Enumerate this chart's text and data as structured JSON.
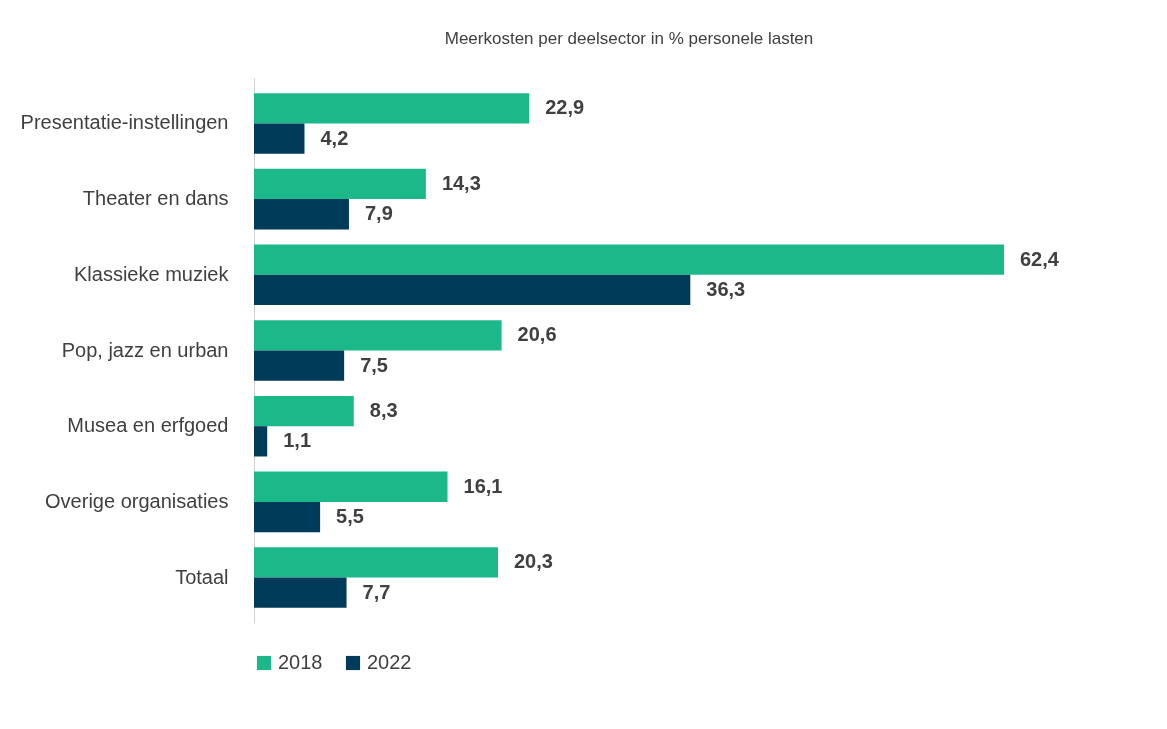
{
  "chart_data": {
    "type": "bar",
    "orientation": "horizontal",
    "title": "Meerkosten per deelsector in % personele lasten",
    "categories": [
      "Presentatie-instellingen",
      "Theater en dans",
      "Klassieke muziek",
      "Pop, jazz en urban",
      "Musea en erfgoed",
      "Overige organisaties",
      "Totaal"
    ],
    "series": [
      {
        "name": "2018",
        "color": "#1cb88a",
        "values": [
          22.9,
          14.3,
          62.4,
          20.6,
          8.3,
          16.1,
          20.3
        ],
        "value_labels": [
          "22,9",
          "14,3",
          "62,4",
          "20,6",
          "8,3",
          "16,1",
          "20,3"
        ]
      },
      {
        "name": "2022",
        "color": "#003b5a",
        "values": [
          4.2,
          7.9,
          36.3,
          7.5,
          1.1,
          5.5,
          7.7
        ],
        "value_labels": [
          "4,2",
          "7,9",
          "36,3",
          "7,5",
          "1,1",
          "5,5",
          "7,7"
        ]
      }
    ],
    "legend": "bottom",
    "grid": false
  }
}
